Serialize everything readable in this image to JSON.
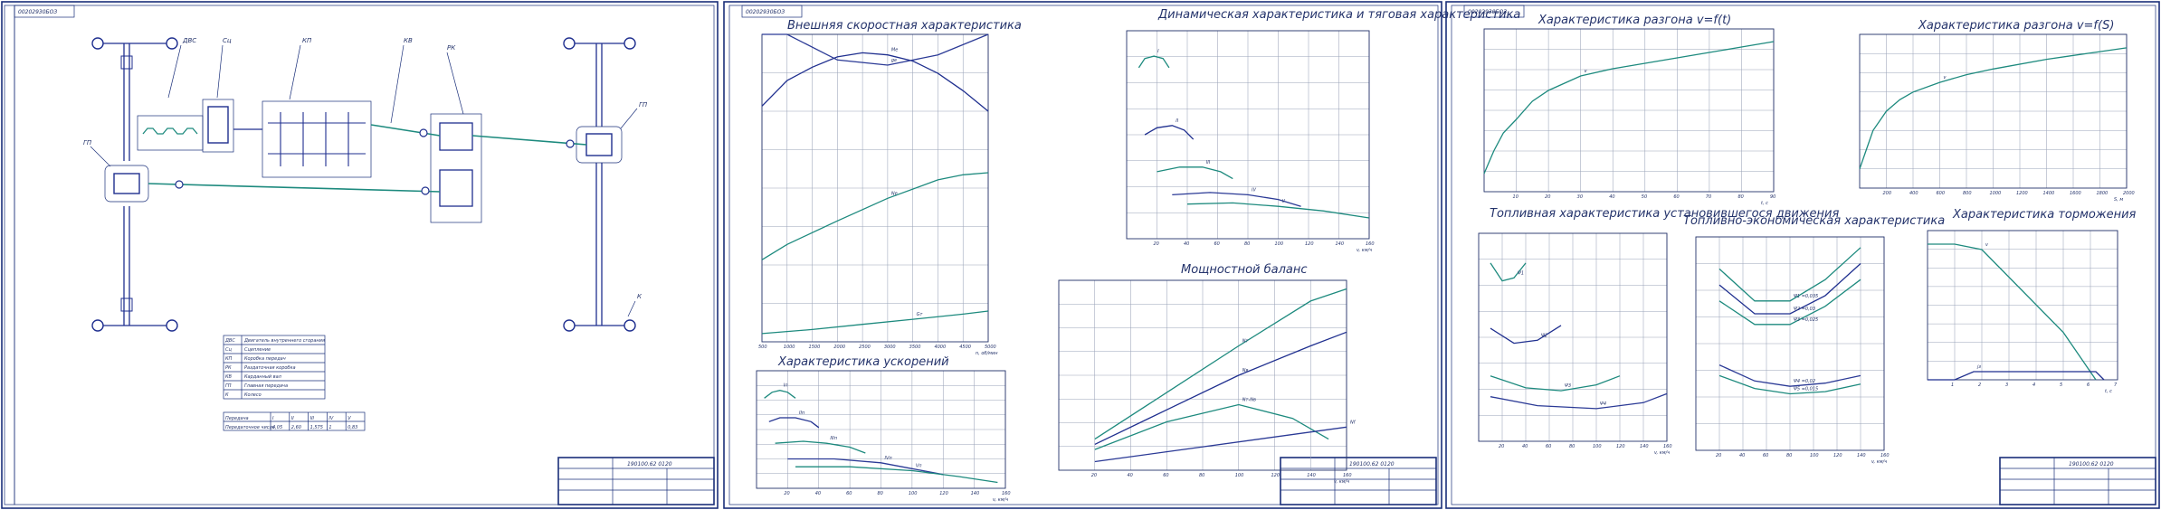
{
  "sheets": [
    {
      "stamp": "00202930БОЗ",
      "doc_code": "190100.62 0120",
      "legend": {
        "rows": [
          [
            "ДВС",
            "Двигатель внутреннего сгорания"
          ],
          [
            "Сц",
            "Сцепление"
          ],
          [
            "КП",
            "Коробка передач"
          ],
          [
            "РК",
            "Раздаточная коробка"
          ],
          [
            "КВ",
            "Карданный вал"
          ],
          [
            "ГП",
            "Главная передача"
          ],
          [
            "К",
            "Колесо"
          ]
        ]
      },
      "ratios": {
        "header": [
          "Передача",
          "I",
          "II",
          "III",
          "IV",
          "V"
        ],
        "row_label": "Передаточное число",
        "values": [
          "4,05",
          "2,60",
          "1,575",
          "1",
          "0,83"
        ]
      },
      "labels": {
        "engine": "ДВС",
        "clutch": "Сц",
        "gearbox": "КП",
        "shaft": "КВ",
        "transfer": "РК",
        "final_drive_rear": "ГП",
        "final_drive_front": "ГП",
        "wheel": "К"
      }
    },
    {
      "stamp": "00202930БОЗ",
      "doc_code": "190100.62 0120",
      "titles": {
        "external": "Внешняя скоростная характеристика",
        "dynamic": "Динамическая характеристика и тяговая характеристика",
        "acceleration": "Характеристика ускорений",
        "power": "Мощностной баланс"
      }
    },
    {
      "stamp": "00202930БОЗ",
      "doc_code": "190100.62 0120",
      "titles": {
        "accel_time": "Характеристика разгона v=f(t)",
        "accel_dist": "Характеристика разгона v=f(S)",
        "fuel_steady": "Топливная характеристика установившегося движения",
        "fuel_econ": "Топливно-экономическая характеристика",
        "braking": "Характеристика торможения"
      }
    }
  ],
  "chart_data": [
    {
      "type": "line",
      "title": "Внешняя скоростная характеристика",
      "xlabel": "n, об/мин",
      "x_ticks": [
        "500",
        "1000",
        "1500",
        "2000",
        "2500",
        "3000",
        "3500",
        "4000",
        "4500",
        "5000"
      ],
      "series": [
        {
          "name": "Ne",
          "x": [
            500,
            1000,
            2000,
            3000,
            4000,
            4500,
            5000
          ],
          "values": [
            80,
            95,
            118,
            140,
            158,
            163,
            165
          ]
        },
        {
          "name": "Ме",
          "x": [
            500,
            1000,
            1500,
            2000,
            2500,
            3000,
            3500,
            4000,
            4500,
            5000
          ],
          "values": [
            230,
            255,
            268,
            278,
            282,
            280,
            274,
            262,
            245,
            225
          ]
        },
        {
          "name": "Gт",
          "x": [
            500,
            1500,
            2500,
            3500,
            4500,
            5000
          ],
          "values": [
            8,
            12,
            17,
            22,
            27,
            30
          ]
        },
        {
          "name": "ge",
          "x": [
            500,
            1000,
            2000,
            3000,
            4000,
            5000
          ],
          "values": [
            330,
            300,
            275,
            270,
            280,
            305
          ]
        }
      ]
    },
    {
      "type": "line",
      "title": "Динамическая характеристика и тяговая характеристика",
      "xlabel": "v, км/ч",
      "x_ticks": [
        "20",
        "40",
        "60",
        "80",
        "100",
        "120",
        "140",
        "160"
      ],
      "series": [
        {
          "name": "I",
          "x": [
            8,
            12,
            18,
            24,
            28
          ],
          "values": [
            0.74,
            0.78,
            0.79,
            0.78,
            0.74
          ]
        },
        {
          "name": "II",
          "x": [
            12,
            20,
            30,
            38,
            44
          ],
          "values": [
            0.45,
            0.48,
            0.49,
            0.47,
            0.43
          ]
        },
        {
          "name": "III",
          "x": [
            20,
            35,
            50,
            62,
            70
          ],
          "values": [
            0.29,
            0.31,
            0.31,
            0.29,
            0.26
          ]
        },
        {
          "name": "IV",
          "x": [
            30,
            55,
            80,
            100,
            115
          ],
          "values": [
            0.19,
            0.2,
            0.19,
            0.17,
            0.14
          ]
        },
        {
          "name": "V",
          "x": [
            40,
            70,
            100,
            130,
            160
          ],
          "values": [
            0.15,
            0.155,
            0.14,
            0.12,
            0.09
          ]
        }
      ]
    },
    {
      "type": "line",
      "title": "Характеристика ускорений",
      "xlabel": "v, км/ч",
      "x_ticks": [
        "20",
        "40",
        "60",
        "80",
        "100",
        "120",
        "140",
        "160"
      ],
      "series": [
        {
          "name": "Iп",
          "x": [
            5,
            10,
            15,
            20,
            25
          ],
          "values": [
            4.6,
            4.9,
            5,
            4.9,
            4.6
          ]
        },
        {
          "name": "IIп",
          "x": [
            8,
            15,
            25,
            35,
            40
          ],
          "values": [
            3.4,
            3.6,
            3.6,
            3.4,
            3.1
          ]
        },
        {
          "name": "IIIп",
          "x": [
            12,
            30,
            45,
            60,
            70
          ],
          "values": [
            2.3,
            2.4,
            2.3,
            2.1,
            1.8
          ]
        },
        {
          "name": "IVп",
          "x": [
            20,
            50,
            80,
            100,
            120
          ],
          "values": [
            1.5,
            1.5,
            1.3,
            1.0,
            0.7
          ]
        },
        {
          "name": "Vп",
          "x": [
            25,
            60,
            100,
            130,
            155
          ],
          "values": [
            1.1,
            1.1,
            0.9,
            0.6,
            0.3
          ]
        }
      ]
    },
    {
      "type": "line",
      "title": "Мощностной баланс",
      "xlabel": "v, км/ч",
      "x_ticks": [
        "20",
        "40",
        "60",
        "80",
        "100",
        "120",
        "140",
        "160"
      ],
      "series": [
        {
          "name": "Nт",
          "x": [
            20,
            60,
            100,
            140,
            160
          ],
          "values": [
            18000,
            45000,
            72000,
            98000,
            105000
          ]
        },
        {
          "name": "Nв",
          "x": [
            20,
            60,
            100,
            140,
            160
          ],
          "values": [
            15000,
            35000,
            55000,
            72000,
            80000
          ]
        },
        {
          "name": "Nт-Nв",
          "x": [
            20,
            60,
            100,
            130,
            150
          ],
          "values": [
            12000,
            28000,
            38000,
            30000,
            18000
          ]
        },
        {
          "name": "Nf",
          "x": [
            20,
            160
          ],
          "values": [
            5000,
            25000
          ]
        }
      ]
    },
    {
      "type": "line",
      "title": "Характеристика разгона v=f(t)",
      "xlabel": "t, c",
      "x_ticks": [
        "10",
        "20",
        "30",
        "40",
        "50",
        "60",
        "70",
        "80",
        "90"
      ],
      "series": [
        {
          "name": "v",
          "x": [
            0,
            3,
            6,
            10,
            15,
            20,
            30,
            40,
            50,
            60,
            70,
            80,
            90
          ],
          "values": [
            20,
            45,
            65,
            80,
            100,
            112,
            128,
            136,
            142,
            148,
            154,
            160,
            166
          ]
        }
      ]
    },
    {
      "type": "line",
      "title": "Характеристика разгона v=f(S)",
      "xlabel": "S, м",
      "x_ticks": [
        "200",
        "400",
        "600",
        "800",
        "1000",
        "1200",
        "1400",
        "1600",
        "1800",
        "2000"
      ],
      "series": [
        {
          "name": "v",
          "x": [
            0,
            50,
            100,
            200,
            300,
            400,
            600,
            800,
            1000,
            1400,
            1800,
            2000
          ],
          "values": [
            20,
            40,
            60,
            80,
            92,
            100,
            110,
            118,
            124,
            134,
            142,
            146
          ]
        }
      ]
    },
    {
      "type": "line",
      "title": "Топливная характеристика установившегося движения",
      "xlabel": "v, км/ч",
      "x_ticks": [
        "20",
        "40",
        "60",
        "80",
        "100",
        "120",
        "140",
        "160"
      ],
      "series": [
        {
          "name": "Ψ1",
          "x": [
            10,
            20,
            30,
            40
          ],
          "values": [
            60,
            54,
            55,
            60
          ]
        },
        {
          "name": "Ψ2",
          "x": [
            10,
            30,
            50,
            70
          ],
          "values": [
            38,
            33,
            34,
            39
          ]
        },
        {
          "name": "Ψ3",
          "x": [
            10,
            40,
            70,
            100,
            120
          ],
          "values": [
            22,
            18,
            17,
            19,
            22
          ]
        },
        {
          "name": "Ψ4",
          "x": [
            10,
            50,
            100,
            140,
            160
          ],
          "values": [
            15,
            12,
            11,
            13,
            16
          ]
        }
      ]
    },
    {
      "type": "line",
      "title": "Топливно-экономическая характеристика",
      "xlabel": "v, км/ч",
      "x_ticks": [
        "20",
        "40",
        "60",
        "80",
        "100",
        "120",
        "140",
        "160"
      ],
      "series": [
        {
          "name": "Ψ1 =0,035",
          "x": [
            20,
            50,
            80,
            110,
            140
          ],
          "values": [
            17,
            14,
            14,
            16,
            19
          ]
        },
        {
          "name": "Ψ2 =0,03",
          "x": [
            20,
            50,
            80,
            110,
            140
          ],
          "values": [
            15.5,
            12.8,
            12.8,
            14.5,
            17.5
          ]
        },
        {
          "name": "Ψ3 =0,025",
          "x": [
            20,
            50,
            80,
            110,
            140
          ],
          "values": [
            14,
            11.8,
            11.8,
            13.5,
            16
          ]
        },
        {
          "name": "Ψ4 =0,02",
          "x": [
            20,
            50,
            80,
            110,
            140
          ],
          "values": [
            8,
            6.5,
            6,
            6.3,
            7
          ]
        },
        {
          "name": "Ψ5 =0,015",
          "x": [
            20,
            50,
            80,
            110,
            140
          ],
          "values": [
            7,
            5.8,
            5.3,
            5.5,
            6.2
          ]
        }
      ]
    },
    {
      "type": "line",
      "title": "Характеристика торможения",
      "xlabel": "t, c",
      "x_ticks": [
        "1",
        "2",
        "3",
        "4",
        "5",
        "6",
        "7"
      ],
      "series": [
        {
          "name": "v",
          "x": [
            0,
            1,
            2,
            5,
            6.2
          ],
          "values": [
            100,
            100,
            96,
            35,
            0
          ]
        },
        {
          "name": "jз",
          "x": [
            0,
            1,
            1.7,
            6.2,
            6.5
          ],
          "values": [
            0,
            0,
            6,
            6,
            0
          ]
        }
      ]
    }
  ]
}
